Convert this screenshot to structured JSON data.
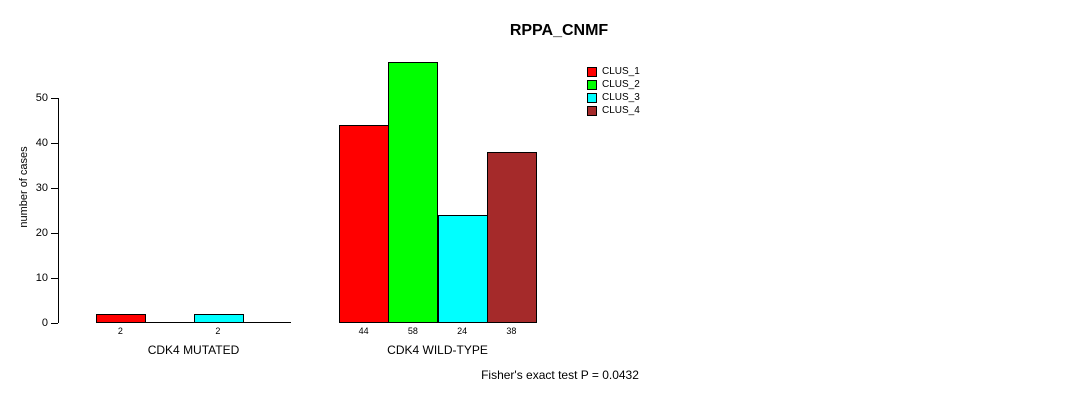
{
  "chart_data": {
    "type": "bar",
    "title": "RPPA_CNMF",
    "ylabel": "number of cases",
    "xlabel": "",
    "ylim": [
      0,
      50
    ],
    "yticks": [
      0,
      10,
      20,
      30,
      40,
      50
    ],
    "grid": false,
    "categories": [
      "CDK4 MUTATED",
      "CDK4 WILD-TYPE"
    ],
    "series": [
      {
        "name": "CLUS_1",
        "color": "#ff0000",
        "values": [
          2,
          44
        ]
      },
      {
        "name": "CLUS_2",
        "color": "#00ff00",
        "values": [
          0,
          58
        ]
      },
      {
        "name": "CLUS_3",
        "color": "#00ffff",
        "values": [
          2,
          24
        ]
      },
      {
        "name": "CLUS_4",
        "color": "#a52a2a",
        "values": [
          0,
          38
        ]
      }
    ],
    "bar_value_labels": {
      "mutated": [
        2,
        2
      ],
      "wild_type": [
        44,
        58,
        24,
        38
      ]
    },
    "legend_position": "top-right",
    "annotation": "Fisher's exact test P = 0.0432",
    "axis_color": "#000000",
    "background_color": "#ffffff"
  }
}
